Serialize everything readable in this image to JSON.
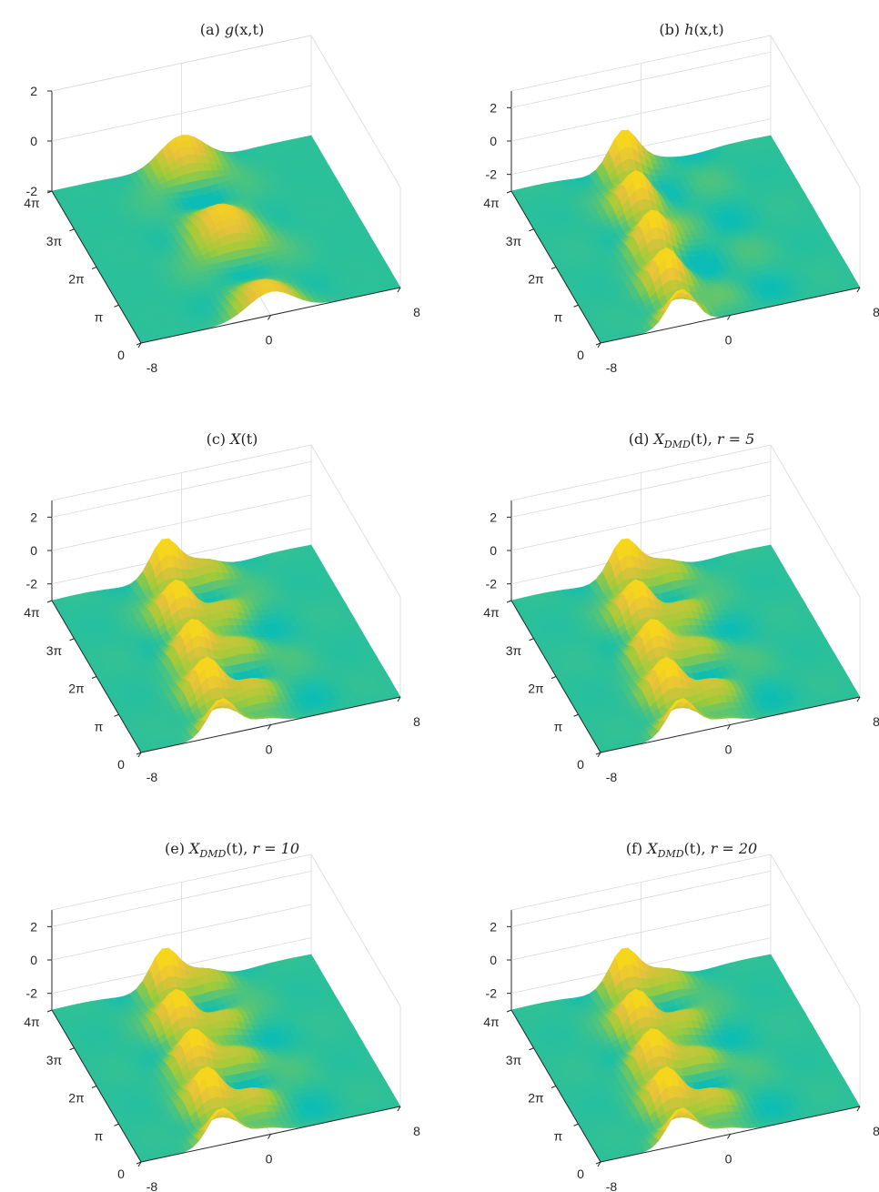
{
  "chart_data": [
    {
      "type": "surface",
      "title": "(a) g(x,t)",
      "title_parts": {
        "prefix": "(a) ",
        "func": "g",
        "args": "(x,t)",
        "sub": "",
        "suffix": ""
      },
      "x_ticks": [
        "-8",
        "0",
        "8"
      ],
      "t_ticks": [
        "0",
        "π",
        "2π",
        "3π",
        "4π"
      ],
      "z_ticks": [
        "-2",
        "0",
        "2"
      ],
      "xlim": [
        -8,
        8
      ],
      "tlim": [
        0,
        12.566
      ],
      "zlim": [
        -2,
        2
      ],
      "colormap": [
        "#3d8ff0",
        "#17b4c6",
        "#0bbdb5",
        "#9fcb3a",
        "#e6c23a",
        "#f6d61c"
      ],
      "grid": true,
      "ridges": []
    },
    {
      "type": "surface",
      "title": "(b) h(x,t)",
      "title_parts": {
        "prefix": "(b) ",
        "func": "h",
        "args": "(x,t)",
        "sub": "",
        "suffix": ""
      },
      "x_ticks": [
        "-8",
        "0",
        "8"
      ],
      "t_ticks": [
        "0",
        "π",
        "2π",
        "3π",
        "4π"
      ],
      "z_ticks": [
        "-2",
        "0",
        "2"
      ],
      "xlim": [
        -8,
        8
      ],
      "tlim": [
        0,
        12.566
      ],
      "zlim": [
        -3,
        3
      ],
      "colormap": [
        "#3d8ff0",
        "#17b4c6",
        "#0bbdb5",
        "#9fcb3a",
        "#e6c23a",
        "#f6d61c"
      ],
      "grid": true,
      "ridges": []
    },
    {
      "type": "surface",
      "title": "(c) X(t)",
      "title_parts": {
        "prefix": "(c) ",
        "func": "X",
        "args": "(t)",
        "sub": "",
        "suffix": ""
      },
      "x_ticks": [
        "-8",
        "0",
        "8"
      ],
      "t_ticks": [
        "0",
        "π",
        "2π",
        "3π",
        "4π"
      ],
      "z_ticks": [
        "-2",
        "0",
        "2"
      ],
      "xlim": [
        -8,
        8
      ],
      "tlim": [
        0,
        12.566
      ],
      "zlim": [
        -3,
        3
      ],
      "colormap": [
        "#3d8ff0",
        "#17b4c6",
        "#0bbdb5",
        "#9fcb3a",
        "#e6c23a",
        "#f6d61c"
      ],
      "grid": true,
      "ridges": []
    },
    {
      "type": "surface",
      "title": "(d) X_DMD(t), r = 5",
      "title_parts": {
        "prefix": "(d) ",
        "func": "X",
        "args": "(t), ",
        "sub": "DMD",
        "suffix": "r = 5"
      },
      "x_ticks": [
        "-8",
        "0",
        "8"
      ],
      "t_ticks": [
        "0",
        "π",
        "2π",
        "3π",
        "4π"
      ],
      "z_ticks": [
        "-2",
        "0",
        "2"
      ],
      "xlim": [
        -8,
        8
      ],
      "tlim": [
        0,
        12.566
      ],
      "zlim": [
        -3,
        3
      ],
      "colormap": [
        "#3d8ff0",
        "#17b4c6",
        "#0bbdb5",
        "#9fcb3a",
        "#e6c23a",
        "#f6d61c"
      ],
      "grid": true,
      "ridges": []
    },
    {
      "type": "surface",
      "title": "(e) X_DMD(t), r = 10",
      "title_parts": {
        "prefix": "(e) ",
        "func": "X",
        "args": "(t), ",
        "sub": "DMD",
        "suffix": "r = 10"
      },
      "x_ticks": [
        "-8",
        "0",
        "8"
      ],
      "t_ticks": [
        "0",
        "π",
        "2π",
        "3π",
        "4π"
      ],
      "z_ticks": [
        "-2",
        "0",
        "2"
      ],
      "xlim": [
        -8,
        8
      ],
      "tlim": [
        0,
        12.566
      ],
      "zlim": [
        -3,
        3
      ],
      "colormap": [
        "#3d8ff0",
        "#17b4c6",
        "#0bbdb5",
        "#9fcb3a",
        "#e6c23a",
        "#f6d61c"
      ],
      "grid": true,
      "ridges": []
    },
    {
      "type": "surface",
      "title": "(f) X_DMD(t), r = 20",
      "title_parts": {
        "prefix": "(f) ",
        "func": "X",
        "args": "(t), ",
        "sub": "DMD",
        "suffix": "r = 20"
      },
      "x_ticks": [
        "-8",
        "0",
        "8"
      ],
      "t_ticks": [
        "0",
        "π",
        "2π",
        "3π",
        "4π"
      ],
      "z_ticks": [
        "-2",
        "0",
        "2"
      ],
      "xlim": [
        -8,
        8
      ],
      "tlim": [
        0,
        12.566
      ],
      "zlim": [
        -3,
        3
      ],
      "colormap": [
        "#3d8ff0",
        "#17b4c6",
        "#0bbdb5",
        "#9fcb3a",
        "#e6c23a",
        "#f6d61c"
      ],
      "grid": true,
      "ridges": []
    }
  ]
}
